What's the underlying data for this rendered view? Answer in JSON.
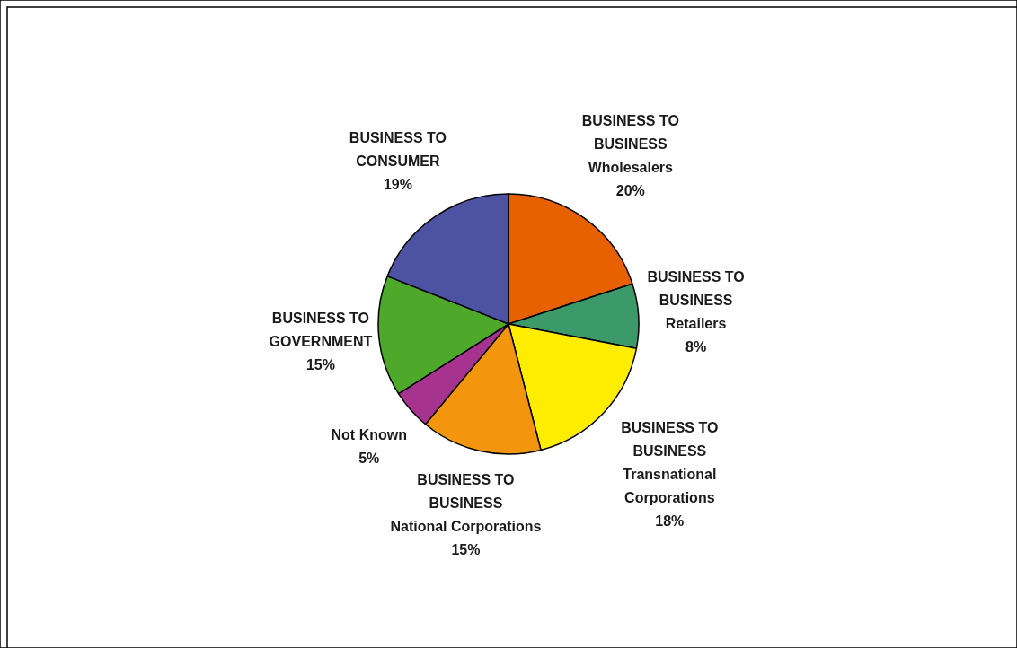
{
  "chart_data": {
    "type": "pie",
    "categories": [
      "BUSINESS TO\nBUSINESS\nWholesalers",
      "BUSINESS TO\nBUSINESS\nRetailers",
      "BUSINESS TO\nBUSINESS\nTransnational\nCorporations",
      "BUSINESS TO\nBUSINESS\nNational Corporations",
      "Not Known",
      "BUSINESS TO\nGOVERNMENT",
      "BUSINESS TO\nCONSUMER"
    ],
    "values": [
      20,
      8,
      18,
      15,
      5,
      15,
      19
    ],
    "value_labels": [
      "20%",
      "8%",
      "18%",
      "15%",
      "5%",
      "15%",
      "19%"
    ],
    "colors": [
      "#e86100",
      "#3c9a6a",
      "#ffed00",
      "#f3960e",
      "#a6348f",
      "#4ea82a",
      "#4e52a3"
    ]
  }
}
